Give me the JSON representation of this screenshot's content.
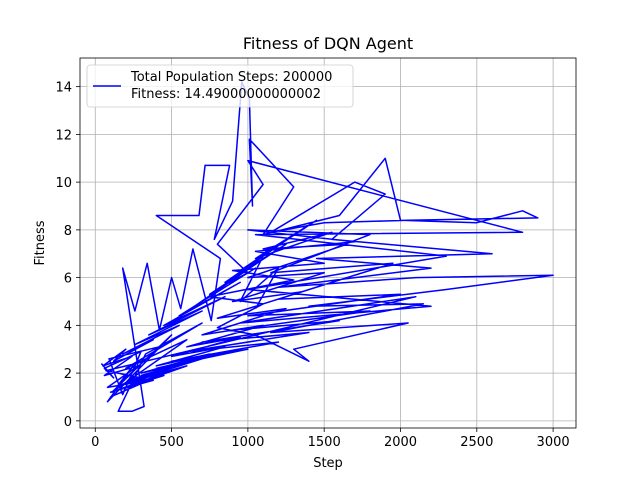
{
  "chart_data": {
    "type": "line",
    "title": "Fitness of DQN Agent",
    "xlabel": "Step",
    "ylabel": "Fitness",
    "xlim": [
      -100,
      3150
    ],
    "ylim": [
      -0.3,
      15.2
    ],
    "xticks": [
      0,
      500,
      1000,
      1500,
      2000,
      2500,
      3000
    ],
    "yticks": [
      0,
      2,
      4,
      6,
      8,
      10,
      12,
      14
    ],
    "grid": true,
    "legend": "top-left",
    "series": [
      {
        "name": "Total Population Steps: 200000",
        "name_line2": "Fitness: 14.49000000000002",
        "color": "#0000ff",
        "points": [
          [
            40,
            2.4
          ],
          [
            120,
            1.8
          ],
          [
            60,
            2.2
          ],
          [
            300,
            2.9
          ],
          [
            180,
            1.1
          ],
          [
            90,
            2.6
          ],
          [
            420,
            3.1
          ],
          [
            150,
            1.5
          ],
          [
            260,
            2.4
          ],
          [
            80,
            0.8
          ],
          [
            500,
            3.6
          ],
          [
            220,
            1.9
          ],
          [
            350,
            2.7
          ],
          [
            110,
            1.2
          ],
          [
            600,
            3.4
          ],
          [
            200,
            2.2
          ],
          [
            700,
            4.1
          ],
          [
            330,
            2.8
          ],
          [
            150,
            0.4
          ],
          [
            240,
            0.4
          ],
          [
            320,
            0.6
          ],
          [
            180,
            6.4
          ],
          [
            260,
            4.6
          ],
          [
            340,
            6.6
          ],
          [
            420,
            3.8
          ],
          [
            500,
            6.0
          ],
          [
            560,
            4.7
          ],
          [
            640,
            7.2
          ],
          [
            760,
            4.2
          ],
          [
            820,
            6.8
          ],
          [
            400,
            8.6
          ],
          [
            680,
            8.6
          ],
          [
            720,
            10.7
          ],
          [
            880,
            10.7
          ],
          [
            780,
            7.6
          ],
          [
            900,
            9.2
          ],
          [
            960,
            14.2
          ],
          [
            1010,
            13.5
          ],
          [
            1030,
            9.0
          ],
          [
            1010,
            11.8
          ],
          [
            1300,
            9.8
          ],
          [
            1100,
            7.8
          ],
          [
            1600,
            8.6
          ],
          [
            1900,
            11.0
          ],
          [
            2000,
            8.4
          ],
          [
            2500,
            8.3
          ],
          [
            2800,
            8.8
          ],
          [
            2900,
            8.5
          ],
          [
            2050,
            8.4
          ],
          [
            1500,
            8.3
          ],
          [
            1150,
            7.9
          ],
          [
            1700,
            10.0
          ],
          [
            1900,
            9.5
          ],
          [
            1550,
            7.6
          ],
          [
            2600,
            7.0
          ],
          [
            1450,
            6.8
          ],
          [
            2200,
            6.4
          ],
          [
            1200,
            5.6
          ],
          [
            2100,
            6.0
          ],
          [
            3000,
            6.1
          ],
          [
            2300,
            5.5
          ],
          [
            1400,
            4.8
          ],
          [
            2150,
            4.9
          ],
          [
            1150,
            3.7
          ],
          [
            2050,
            4.1
          ],
          [
            1300,
            3.0
          ],
          [
            1400,
            2.5
          ],
          [
            1050,
            3.6
          ],
          [
            800,
            3.9
          ],
          [
            1100,
            4.9
          ],
          [
            750,
            5.2
          ],
          [
            1300,
            5.9
          ],
          [
            900,
            6.3
          ],
          [
            1500,
            6.6
          ],
          [
            1050,
            7.1
          ],
          [
            1700,
            7.5
          ],
          [
            1000,
            8.0
          ],
          [
            1800,
            7.8
          ],
          [
            1150,
            6.2
          ],
          [
            1950,
            6.6
          ],
          [
            1200,
            5.1
          ],
          [
            2000,
            5.3
          ],
          [
            1000,
            4.4
          ],
          [
            1800,
            4.6
          ],
          [
            900,
            3.8
          ],
          [
            1600,
            4.2
          ],
          [
            700,
            3.3
          ],
          [
            1400,
            3.7
          ],
          [
            600,
            2.9
          ],
          [
            1200,
            3.3
          ],
          [
            500,
            2.5
          ],
          [
            1000,
            3.0
          ],
          [
            400,
            2.2
          ],
          [
            800,
            2.8
          ],
          [
            300,
            1.9
          ],
          [
            700,
            2.6
          ],
          [
            200,
            1.6
          ],
          [
            600,
            2.3
          ],
          [
            150,
            1.3
          ],
          [
            450,
            2.0
          ],
          [
            100,
            1.0
          ],
          [
            350,
            1.7
          ],
          [
            80,
            1.4
          ],
          [
            280,
            2.3
          ],
          [
            60,
            1.9
          ],
          [
            240,
            2.7
          ],
          [
            50,
            2.3
          ],
          [
            200,
            3.0
          ],
          [
            120,
            2.5
          ],
          [
            380,
            3.4
          ],
          [
            180,
            2.8
          ],
          [
            550,
            4.0
          ],
          [
            260,
            3.2
          ],
          [
            700,
            4.6
          ],
          [
            350,
            3.6
          ],
          [
            850,
            5.2
          ],
          [
            450,
            4.0
          ],
          [
            950,
            5.8
          ],
          [
            550,
            4.4
          ],
          [
            1050,
            6.4
          ],
          [
            650,
            4.8
          ],
          [
            1150,
            7.0
          ],
          [
            750,
            5.3
          ],
          [
            1250,
            7.4
          ],
          [
            850,
            5.8
          ],
          [
            1350,
            8.0
          ],
          [
            950,
            6.3
          ],
          [
            1450,
            8.4
          ],
          [
            1050,
            6.8
          ],
          [
            1550,
            7.9
          ],
          [
            1100,
            7.2
          ],
          [
            1650,
            7.4
          ],
          [
            1000,
            6.0
          ],
          [
            1500,
            6.2
          ],
          [
            900,
            5.0
          ],
          [
            1350,
            5.4
          ],
          [
            800,
            4.3
          ],
          [
            1250,
            4.7
          ],
          [
            700,
            3.6
          ],
          [
            1100,
            4.0
          ],
          [
            600,
            3.1
          ],
          [
            950,
            3.5
          ],
          [
            500,
            2.7
          ],
          [
            850,
            3.1
          ],
          [
            400,
            2.3
          ],
          [
            750,
            2.8
          ],
          [
            300,
            2.0
          ],
          [
            650,
            2.5
          ],
          [
            220,
            1.7
          ],
          [
            550,
            2.2
          ],
          [
            160,
            1.5
          ],
          [
            450,
            1.9
          ],
          [
            100,
            1.2
          ],
          [
            380,
            1.7
          ],
          [
            70,
            2.1
          ],
          [
            2100,
            5.2
          ],
          [
            950,
            4.1
          ],
          [
            2200,
            4.8
          ],
          [
            1000,
            5.5
          ],
          [
            2300,
            6.9
          ],
          [
            1050,
            7.8
          ],
          [
            2800,
            7.9
          ],
          [
            1000,
            10.9
          ],
          [
            1100,
            9.9
          ],
          [
            800,
            7.4
          ],
          [
            1000,
            6.2
          ],
          [
            850,
            5.7
          ],
          [
            1100,
            6.9
          ],
          [
            950,
            5.0
          ],
          [
            1200,
            6.4
          ],
          [
            1050,
            4.7
          ]
        ]
      }
    ]
  }
}
